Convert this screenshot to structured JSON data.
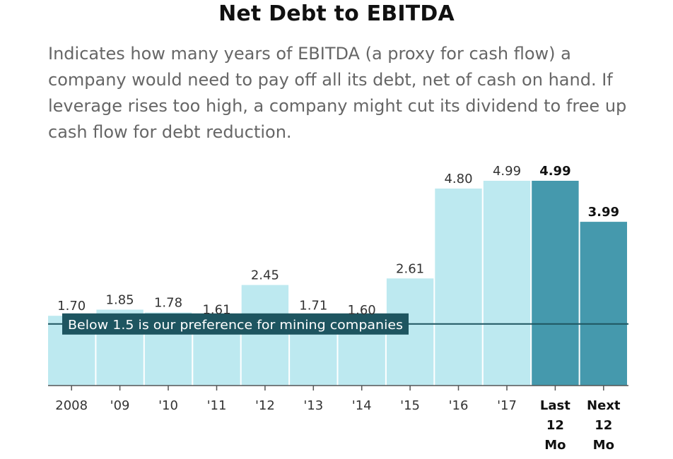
{
  "header": {
    "title": "Net Debt to EBITDA",
    "subtitle": "Indicates how many years of EBITDA (a proxy for cash flow) a company would need to pay off all its debt, net of cash on hand. If leverage rises too high, a company might cut its dividend to free up cash flow for debt reduction."
  },
  "colors": {
    "historical": "#bde9f0",
    "highlight": "#4599ad",
    "reference": "#1e5560",
    "text": "#333333"
  },
  "chart_data": {
    "type": "bar",
    "title": "Net Debt to EBITDA",
    "categories": [
      "2008",
      "'09",
      "'10",
      "'11",
      "'12",
      "'13",
      "'14",
      "'15",
      "'16",
      "'17",
      "Last 12 Mo",
      "Next 12 Mo"
    ],
    "category_lines": [
      [
        "2008"
      ],
      [
        "'09"
      ],
      [
        "'10"
      ],
      [
        "'11"
      ],
      [
        "'12"
      ],
      [
        "'13"
      ],
      [
        "'14"
      ],
      [
        "'15"
      ],
      [
        "'16"
      ],
      [
        "'17"
      ],
      [
        "Last",
        "12",
        "Mo"
      ],
      [
        "Next",
        "12",
        "Mo"
      ]
    ],
    "values": [
      1.7,
      1.85,
      1.78,
      1.61,
      2.45,
      1.71,
      1.6,
      2.61,
      4.8,
      4.99,
      4.99,
      3.99
    ],
    "value_labels": [
      "1.70",
      "1.85",
      "1.78",
      "1.61",
      "2.45",
      "1.71",
      "1.60",
      "2.61",
      "4.80",
      "4.99",
      "4.99",
      "3.99"
    ],
    "highlighted": [
      false,
      false,
      false,
      false,
      false,
      false,
      false,
      false,
      false,
      false,
      true,
      true
    ],
    "reference_line": {
      "value": 1.5,
      "label": "Below 1.5 is our preference for mining companies"
    },
    "ylim": [
      0,
      5.2
    ],
    "xlabel": "",
    "ylabel": "",
    "grid": false
  }
}
